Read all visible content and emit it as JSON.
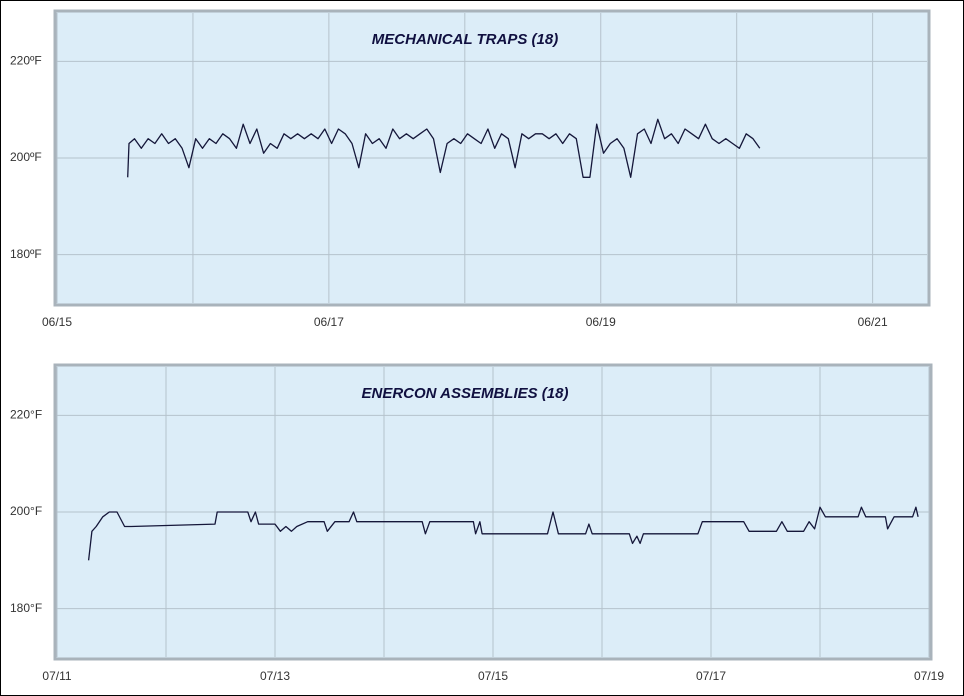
{
  "chart_data": [
    {
      "type": "line",
      "title": "MECHANICAL TRAPS (18)",
      "xlim": [
        0,
        6.4
      ],
      "xticks": [
        {
          "value": 0,
          "label": "06/15"
        },
        {
          "value": 2,
          "label": "06/17"
        },
        {
          "value": 4,
          "label": "06/19"
        },
        {
          "value": 6,
          "label": "06/21"
        }
      ],
      "x_minor_ticks": [
        1,
        3,
        5
      ],
      "ylim": [
        170,
        230
      ],
      "yticks": [
        {
          "value": 180,
          "label": "180ºF"
        },
        {
          "value": 200,
          "label": "200ºF"
        },
        {
          "value": 220,
          "label": "220ºF"
        }
      ],
      "grid": true,
      "series": [
        {
          "color": "#15173a",
          "x": [
            0.52,
            0.53,
            0.57,
            0.62,
            0.67,
            0.72,
            0.77,
            0.82,
            0.87,
            0.92,
            0.97,
            1.02,
            1.07,
            1.12,
            1.17,
            1.22,
            1.27,
            1.32,
            1.37,
            1.42,
            1.47,
            1.52,
            1.57,
            1.62,
            1.67,
            1.72,
            1.77,
            1.82,
            1.87,
            1.92,
            1.97,
            2.02,
            2.07,
            2.12,
            2.17,
            2.22,
            2.27,
            2.32,
            2.37,
            2.42,
            2.47,
            2.52,
            2.57,
            2.62,
            2.67,
            2.72,
            2.77,
            2.82,
            2.87,
            2.92,
            2.97,
            3.02,
            3.07,
            3.12,
            3.17,
            3.22,
            3.27,
            3.32,
            3.37,
            3.42,
            3.47,
            3.52,
            3.57,
            3.62,
            3.67,
            3.72,
            3.77,
            3.82,
            3.87,
            3.92,
            3.97,
            4.02,
            4.07,
            4.12,
            4.17,
            4.22,
            4.27,
            4.32,
            4.37,
            4.42,
            4.47,
            4.52,
            4.57,
            4.62,
            4.67,
            4.72,
            4.77,
            4.82,
            4.87,
            4.92,
            4.97,
            5.02,
            5.07,
            5.12,
            5.17
          ],
          "values": [
            196,
            203,
            204,
            202,
            204,
            203,
            205,
            203,
            204,
            202,
            198,
            204,
            202,
            204,
            203,
            205,
            204,
            202,
            207,
            203,
            206,
            201,
            203,
            202,
            205,
            204,
            205,
            204,
            205,
            204,
            206,
            203,
            206,
            205,
            203,
            198,
            205,
            203,
            204,
            202,
            206,
            204,
            205,
            204,
            205,
            206,
            204,
            197,
            203,
            204,
            203,
            205,
            204,
            203,
            206,
            202,
            205,
            204,
            198,
            205,
            204,
            205,
            205,
            204,
            205,
            203,
            205,
            204,
            196,
            196,
            207,
            201,
            203,
            204,
            202,
            196,
            205,
            206,
            203,
            208,
            204,
            205,
            203,
            206,
            205,
            204,
            207,
            204,
            203,
            204,
            203,
            202,
            205,
            204,
            202
          ]
        }
      ]
    },
    {
      "type": "line",
      "title": "ENERCON ASSEMBLIES (18)",
      "xlim": [
        0,
        8
      ],
      "xticks": [
        {
          "value": 0,
          "label": "07/11"
        },
        {
          "value": 2,
          "label": "07/13"
        },
        {
          "value": 4,
          "label": "07/15"
        },
        {
          "value": 6,
          "label": "07/17"
        },
        {
          "value": 8,
          "label": "07/19"
        }
      ],
      "x_minor_ticks": [
        1,
        3,
        5,
        7
      ],
      "ylim": [
        170,
        230
      ],
      "yticks": [
        {
          "value": 180,
          "label": "180°F"
        },
        {
          "value": 200,
          "label": "200°F"
        },
        {
          "value": 220,
          "label": "220°F"
        }
      ],
      "grid": true,
      "series": [
        {
          "color": "#15173a",
          "x": [
            0.29,
            0.32,
            0.36,
            0.42,
            0.48,
            0.55,
            0.62,
            0.68,
            1.45,
            1.47,
            1.75,
            1.78,
            1.82,
            1.85,
            2.0,
            2.05,
            2.1,
            2.15,
            2.2,
            2.3,
            2.45,
            2.48,
            2.55,
            2.68,
            2.72,
            2.75,
            3.35,
            3.38,
            3.42,
            3.82,
            3.84,
            3.88,
            3.9,
            4.5,
            4.55,
            4.6,
            4.85,
            4.88,
            4.91,
            5.25,
            5.28,
            5.32,
            5.35,
            5.38,
            5.88,
            5.92,
            6.3,
            6.35,
            6.6,
            6.65,
            6.7,
            6.85,
            6.9,
            6.95,
            7.0,
            7.05,
            7.35,
            7.38,
            7.42,
            7.6,
            7.62,
            7.68,
            7.85,
            7.88,
            7.9
          ],
          "values": [
            190,
            196,
            197,
            199,
            200,
            200,
            197,
            197,
            197.5,
            200,
            200,
            198,
            200,
            197.5,
            197.5,
            196,
            197,
            196,
            197,
            198,
            198,
            196,
            198,
            198,
            200,
            198,
            198,
            195.5,
            198,
            198,
            195.5,
            198,
            195.5,
            195.5,
            200,
            195.5,
            195.5,
            197.5,
            195.5,
            195.5,
            193.5,
            195,
            193.5,
            195.5,
            195.5,
            198,
            198,
            196,
            196,
            198,
            196,
            196,
            198,
            196.5,
            201,
            199,
            199,
            201,
            199,
            199,
            196.5,
            199,
            199,
            201,
            199
          ]
        }
      ]
    }
  ]
}
